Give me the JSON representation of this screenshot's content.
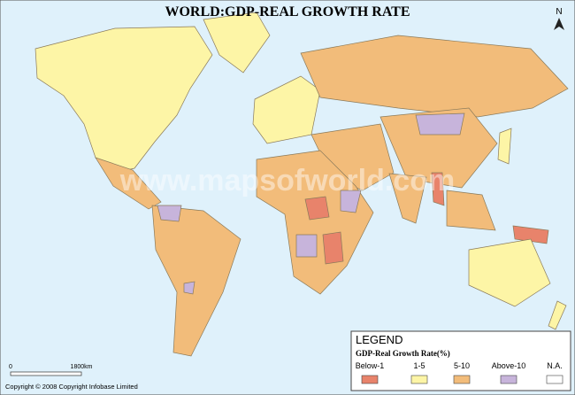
{
  "header": {
    "title": "WORLD:GDP-REAL GROWTH RATE",
    "north": "N",
    "watermark": "www.mapsofworld.com"
  },
  "legend": {
    "heading": "LEGEND",
    "title": "GDP-Real Growth Rate(%)",
    "items": [
      {
        "label": "Below-1",
        "color": "#e8836b"
      },
      {
        "label": "1-5",
        "color": "#fdf5a6"
      },
      {
        "label": "5-10",
        "color": "#f2bc7a"
      },
      {
        "label": "Above-10",
        "color": "#c7b4db"
      },
      {
        "label": "N.A.",
        "color": "#ffffff"
      }
    ]
  },
  "scale": {
    "start": "0",
    "end": "1800km"
  },
  "footer": {
    "copyright": "Copyright © 2008 Copyright Infobase Limited"
  }
}
